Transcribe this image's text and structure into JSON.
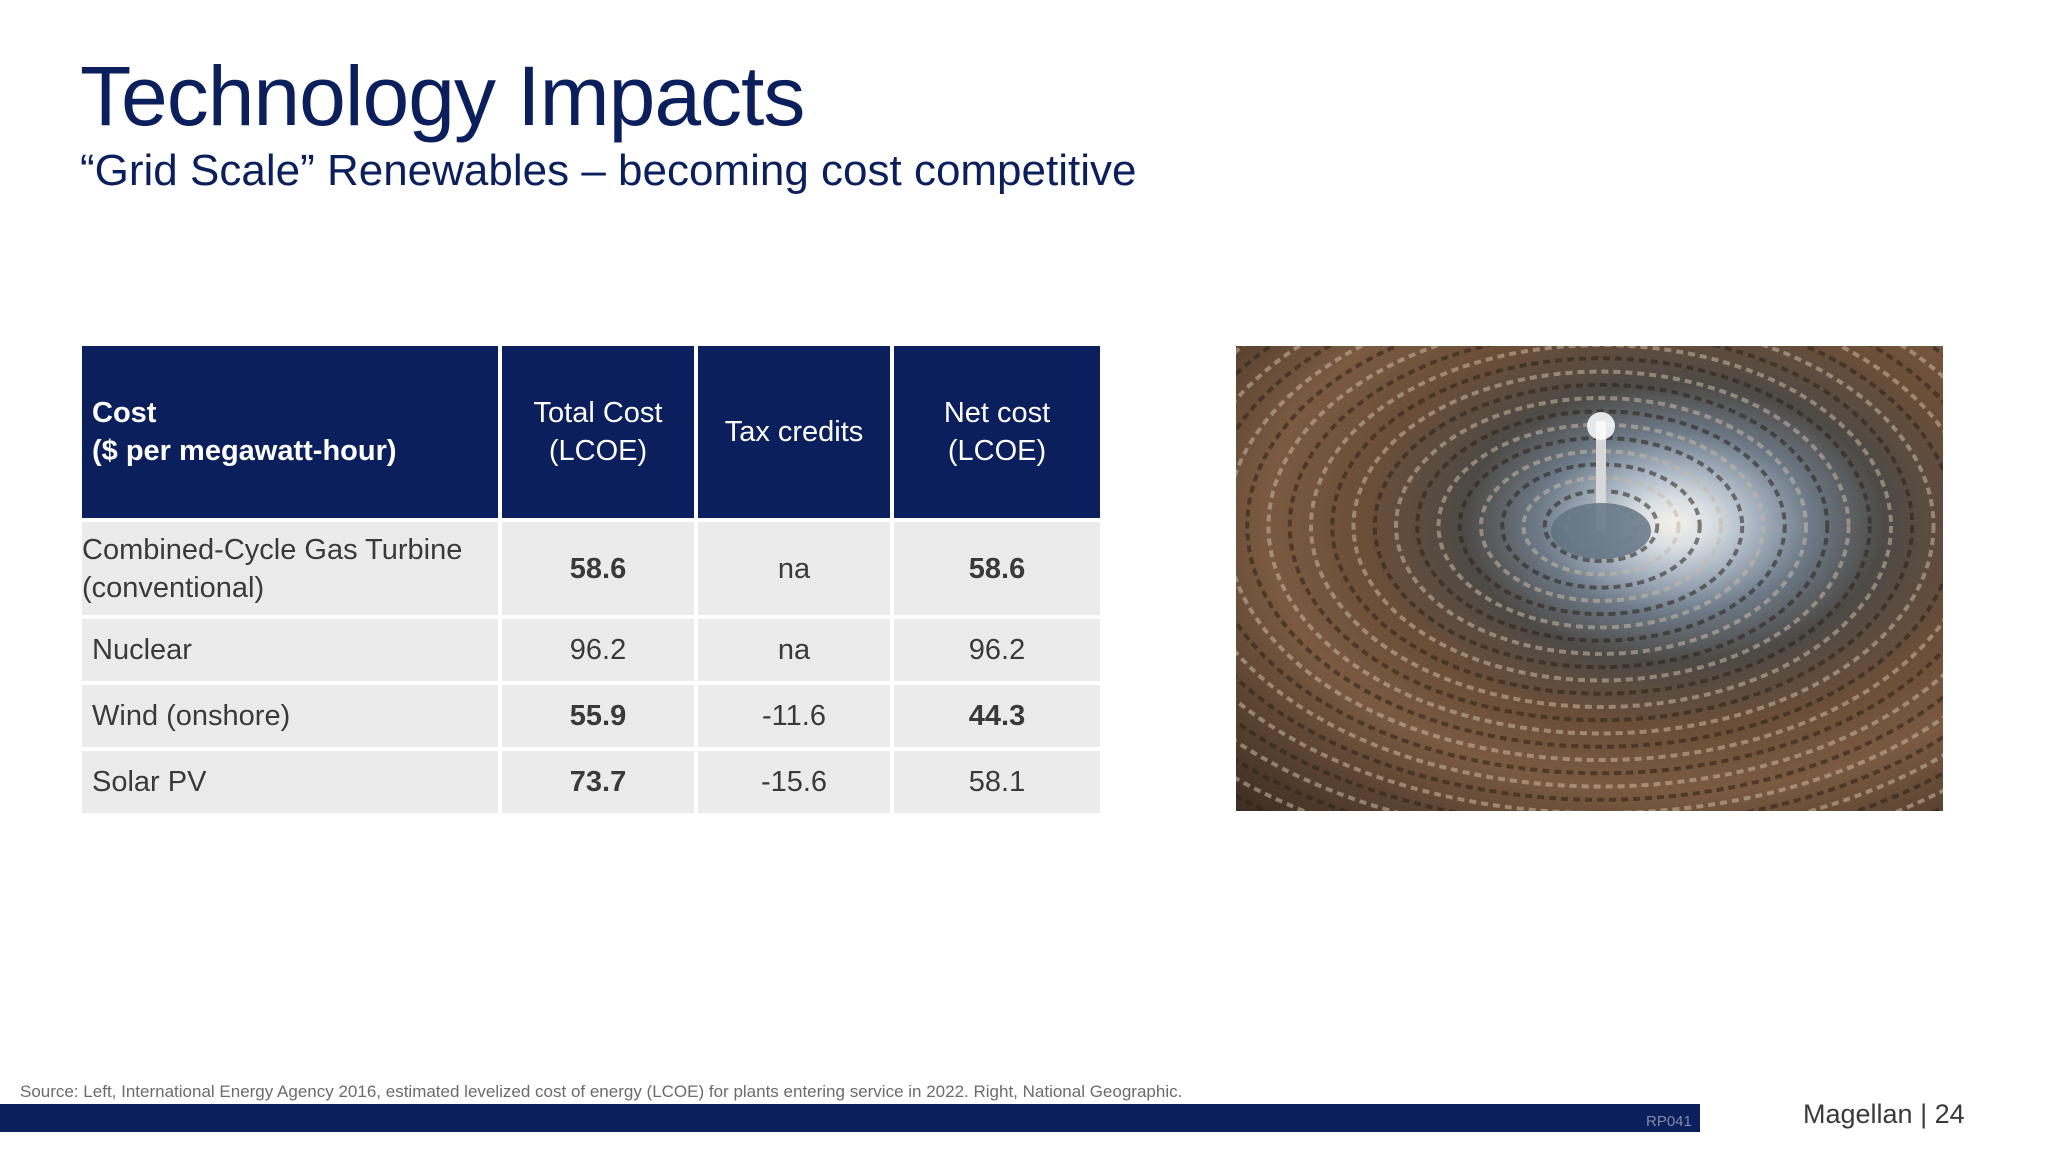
{
  "title": "Technology Impacts",
  "subtitle": "“Grid Scale” Renewables – becoming cost competitive",
  "table": {
    "header": {
      "col1_line1": "Cost",
      "col1_line2": "($ per megawatt-hour)",
      "col2_line1": "Total Cost",
      "col2_line2": "(LCOE)",
      "col3": "Tax credits",
      "col4_line1": "Net cost",
      "col4_line2": "(LCOE)"
    },
    "rows": [
      {
        "label_line1": "Combined-Cycle Gas Turbine",
        "label_line2": "(conventional)",
        "total": "58.6",
        "credits": "na",
        "net": "58.6"
      },
      {
        "label": "Nuclear",
        "total": "96.2",
        "credits": "na",
        "net": "96.2"
      },
      {
        "label": "Wind (onshore)",
        "total": "55.9",
        "credits": "-11.6",
        "net": "44.3"
      },
      {
        "label": "Solar PV",
        "total": "73.7",
        "credits": "-15.6",
        "net": "58.1"
      }
    ]
  },
  "photo": {
    "subject": "solar-thermal-plant-aerial-photo"
  },
  "source": "Source: Left, International Energy Agency 2016, estimated levelized cost of energy (LCOE) for plants entering service in 2022. Right, National Geographic.",
  "footer": {
    "code": "RP041",
    "brand": "Magellan | 24"
  },
  "colors": {
    "navy": "#0b1f5c",
    "cell_gray": "#ebebeb",
    "text_dark": "#3a3a3a"
  }
}
